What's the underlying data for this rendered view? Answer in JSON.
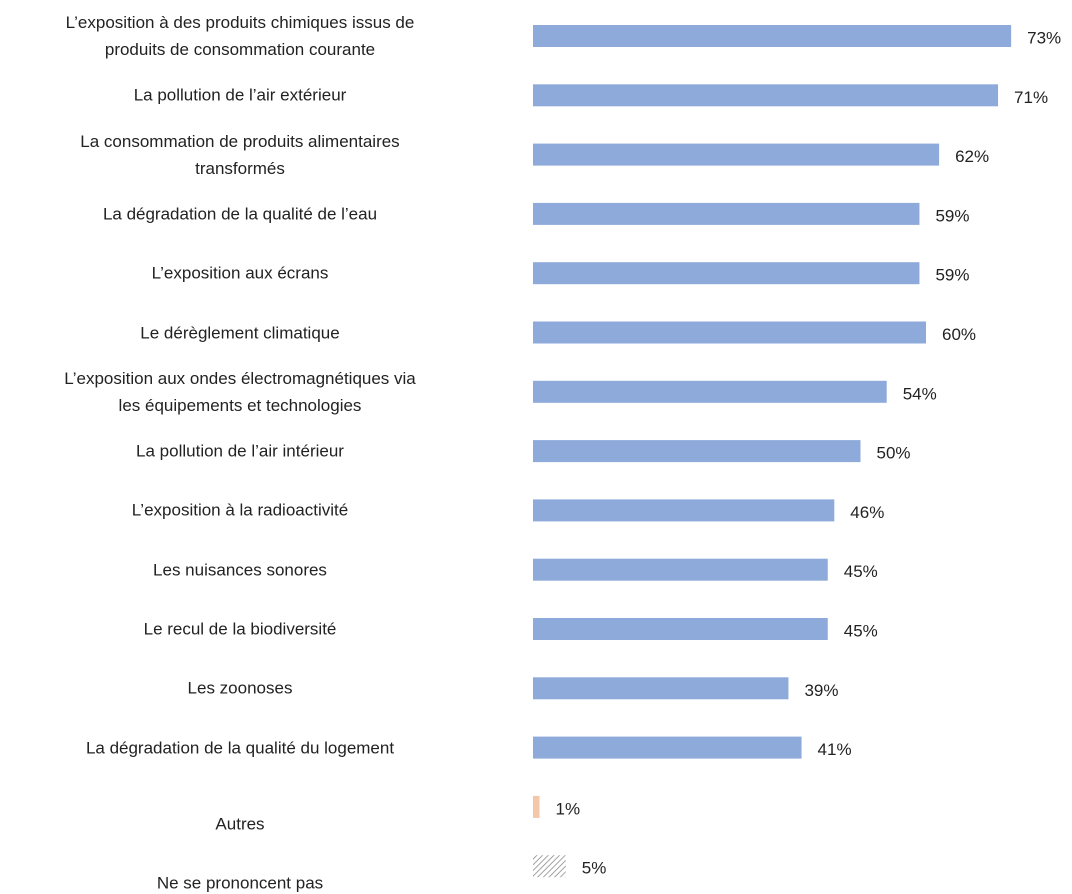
{
  "chart_data": {
    "type": "bar",
    "orientation": "horizontal",
    "categories": [
      "L’exposition à des produits chimiques issus de\nproduits de consommation courante",
      "La pollution de l’air extérieur",
      "La consommation de produits alimentaires\ntransformés",
      "La dégradation de la qualité de l’eau",
      "L’exposition aux écrans",
      "Le dérèglement climatique",
      "L’exposition aux ondes électromagnétiques via\nles équipements et technologies",
      "La pollution de l’air intérieur",
      "L’exposition à la radioactivité",
      "Les nuisances sonores",
      "Le recul de la biodiversité",
      "Les zoonoses",
      "La dégradation de la qualité du logement",
      "Autres",
      "Ne se prononcent pas"
    ],
    "values": [
      73,
      71,
      62,
      59,
      59,
      60,
      54,
      50,
      46,
      45,
      45,
      39,
      41,
      1,
      5
    ],
    "value_labels": [
      "73%",
      "71%",
      "62%",
      "59%",
      "59%",
      "60%",
      "54%",
      "50%",
      "46%",
      "45%",
      "45%",
      "39%",
      "41%",
      "1%",
      "5%"
    ],
    "colors": [
      "#8eaadb",
      "#8eaadb",
      "#8eaadb",
      "#8eaadb",
      "#8eaadb",
      "#8eaadb",
      "#8eaadb",
      "#8eaadb",
      "#8eaadb",
      "#8eaadb",
      "#8eaadb",
      "#8eaadb",
      "#8eaadb",
      "#f4c7a9",
      "#8c8c8c"
    ],
    "fill_styles": [
      "solid",
      "solid",
      "solid",
      "solid",
      "solid",
      "solid",
      "solid",
      "solid",
      "solid",
      "solid",
      "solid",
      "solid",
      "solid",
      "solid",
      "hatch"
    ],
    "xlim": [
      0,
      80
    ]
  }
}
